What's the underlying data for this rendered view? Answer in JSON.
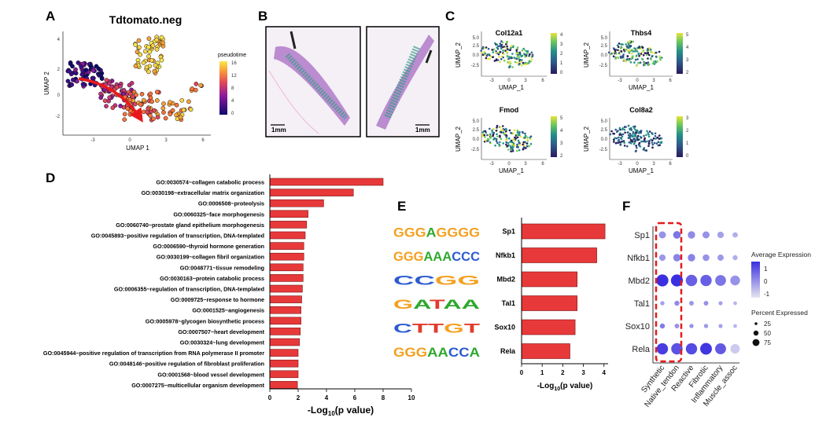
{
  "panel_letters": {
    "A": "A",
    "B": "B",
    "C": "C",
    "D": "D",
    "E": "E",
    "F": "F"
  },
  "colors": {
    "bar_fill": "#e8393a",
    "bar_stroke": "#7a1212",
    "arrow": "#e8191b",
    "dot_blue": "#4a3fd8",
    "dot_grey": "#c9c9cf",
    "box_dash": "#e31a1c"
  },
  "panel_a": {
    "title": "Tdtomato.neg",
    "xlabel": "UMAP 1",
    "ylabel": "UMAP 2",
    "xticks": [
      "-3",
      "0",
      "3",
      "6"
    ],
    "yticks": [
      "4",
      "2",
      "0",
      "-2"
    ],
    "legend_title": "pseudotime",
    "legend_ticks": [
      "16",
      "12",
      "8",
      "4",
      "0"
    ]
  },
  "panel_b": {
    "scale_left": "1mm",
    "scale_right": "1mm"
  },
  "panel_c": {
    "plots": [
      {
        "title": "Col12a1",
        "cbar_ticks": [
          "4",
          "3",
          "2",
          "1",
          "0"
        ]
      },
      {
        "title": "Thbs4",
        "cbar_ticks": [
          "5",
          "4",
          "3",
          "2"
        ]
      },
      {
        "title": "Fmod",
        "cbar_ticks": [
          "5",
          "4",
          "3",
          "2"
        ]
      },
      {
        "title": "Col8a2",
        "cbar_ticks": [
          "3",
          "2",
          "1",
          "0"
        ]
      }
    ],
    "xlabel": "UMAP_1",
    "ylabel": "UMAP_2",
    "xticks": [
      "-3",
      "0",
      "3",
      "6"
    ],
    "yticks": [
      "2.5",
      "0.0",
      "-2.5"
    ],
    "yticks_top": [
      "2.5",
      "0.0",
      "-2.5",
      "5.0"
    ]
  },
  "chart_data": [
    {
      "type": "bar",
      "orientation": "horizontal",
      "panel": "D",
      "categories": [
        "GO:0030574~collagen catabolic process",
        "GO:0030198~extracellular matrix organization",
        "GO:0006508~proteolysis",
        "GO:0060325~face morphogenesis",
        "GO:0060740~prostate gland epithelium morphogenesis",
        "GO:0045893~positive regulation of transcription, DNA-templated",
        "GO:0006590~thyroid hormone generation",
        "GO:0030199~collagen fibril organization",
        "GO:0048771~tissue remodeling",
        "GO:0030163~protein catabolic process",
        "GO:0006355~regulation of transcription, DNA-templated",
        "GO:0009725~response to hormone",
        "GO:0001525~angiogenesis",
        "GO:0005978~glycogen biosynthetic process",
        "GO:0007507~heart development",
        "GO:0030324~lung development",
        "GO:0045944~positive regulation of transcription from RNA polymerase II promoter",
        "GO:0048146~positive regulation of fibroblast proliferation",
        "GO:0001568~blood vessel development",
        "GO:0007275~multicellular organism development"
      ],
      "values": [
        8.0,
        5.9,
        3.8,
        2.7,
        2.6,
        2.5,
        2.4,
        2.4,
        2.35,
        2.35,
        2.3,
        2.25,
        2.2,
        2.2,
        2.15,
        2.1,
        2.0,
        2.0,
        2.0,
        1.95
      ],
      "xlim": [
        0,
        10
      ],
      "xticks": [
        "0",
        "2",
        "4",
        "6",
        "8",
        "10"
      ],
      "xlabel": "-Log",
      "xlabel_sub": "10",
      "xlabel_tail": "(p value)"
    },
    {
      "type": "bar",
      "orientation": "horizontal",
      "panel": "E",
      "categories": [
        "Sp1",
        "Nfkb1",
        "Mbd2",
        "Tal1",
        "Sox10",
        "Rela"
      ],
      "values": [
        4.05,
        3.65,
        2.7,
        2.7,
        2.6,
        2.35
      ],
      "xlim": [
        0,
        4.2
      ],
      "xticks": [
        "0",
        "1",
        "2",
        "3",
        "4"
      ],
      "xlabel": "-Log",
      "xlabel_sub": "10",
      "xlabel_tail": "(p value)",
      "motif_logos": [
        "GGGAGGGG",
        "GGGAAACCC",
        "CCGG",
        "GATAA",
        "CTTGT",
        "GGGAACCA"
      ]
    },
    {
      "type": "dotplot",
      "panel": "F",
      "genes": [
        "Sp1",
        "Nfkb1",
        "Mbd2",
        "Tal1",
        "Sox10",
        "Rela"
      ],
      "groups": [
        "Synthetic",
        "Native_tendon",
        "Reactive",
        "Fibrotic",
        "Inflammatory",
        "Muscle_assoc"
      ],
      "avg_expression": [
        [
          0.2,
          0.6,
          0.3,
          0.2,
          0.0,
          -0.2
        ],
        [
          0.1,
          0.4,
          0.4,
          0.2,
          0.1,
          -0.2
        ],
        [
          1.6,
          1.6,
          0.9,
          0.9,
          0.6,
          0.2
        ],
        [
          0.0,
          0.3,
          0.1,
          0.2,
          0.0,
          -0.3
        ],
        [
          0.5,
          0.2,
          0.2,
          0.1,
          0.0,
          -0.3
        ],
        [
          1.4,
          1.1,
          1.2,
          1.5,
          1.0,
          -0.6
        ]
      ],
      "pct_expressed": [
        [
          25,
          30,
          28,
          25,
          20,
          12
        ],
        [
          20,
          28,
          28,
          22,
          18,
          10
        ],
        [
          90,
          90,
          80,
          78,
          70,
          55
        ],
        [
          6,
          10,
          8,
          8,
          5,
          4
        ],
        [
          10,
          8,
          6,
          6,
          5,
          4
        ],
        [
          78,
          80,
          78,
          85,
          72,
          50
        ]
      ],
      "color_legend_title": "Average Expression",
      "color_legend_ticks": [
        "1",
        "0",
        "-1"
      ],
      "size_legend_title": "Percent Expressed",
      "size_legend_values": [
        "25",
        "50",
        "75"
      ]
    }
  ]
}
